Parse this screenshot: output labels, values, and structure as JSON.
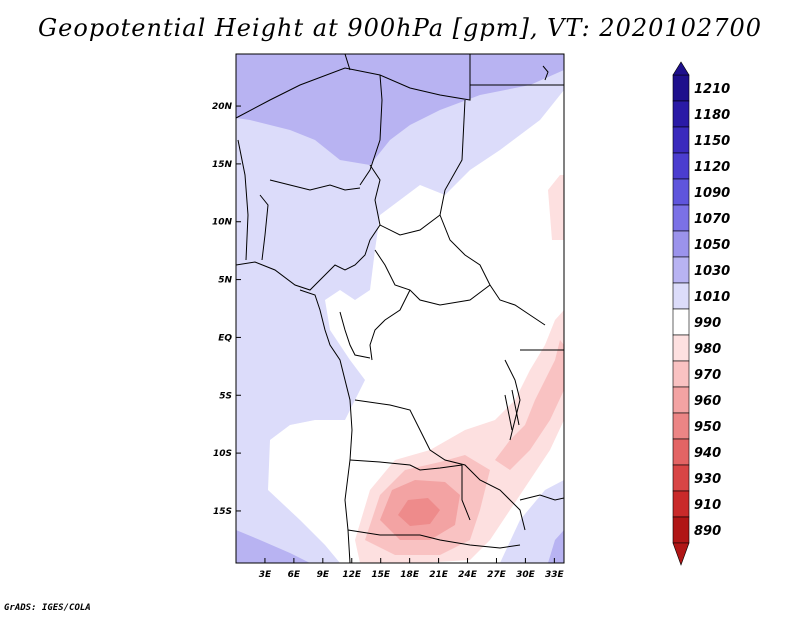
{
  "title": "Geopotential Height at 900hPa [gpm], VT: 2020102700",
  "credit": "GrADS: IGES/COLA",
  "map": {
    "region": "Central and Southern-Central Africa",
    "lon_range": [
      0,
      34
    ],
    "lat_range": [
      -19.5,
      24.5
    ],
    "lat_ticks": [
      {
        "value": 20,
        "label": "20N"
      },
      {
        "value": 15,
        "label": "15N"
      },
      {
        "value": 10,
        "label": "10N"
      },
      {
        "value": 5,
        "label": "5N"
      },
      {
        "value": 0,
        "label": "EQ"
      },
      {
        "value": -5,
        "label": "5S"
      },
      {
        "value": -10,
        "label": "10S"
      },
      {
        "value": -15,
        "label": "15S"
      }
    ],
    "lon_ticks": [
      {
        "value": 3,
        "label": "3E"
      },
      {
        "value": 6,
        "label": "6E"
      },
      {
        "value": 9,
        "label": "9E"
      },
      {
        "value": 12,
        "label": "12E"
      },
      {
        "value": 15,
        "label": "15E"
      },
      {
        "value": 18,
        "label": "18E"
      },
      {
        "value": 21,
        "label": "21E"
      },
      {
        "value": 24,
        "label": "24E"
      },
      {
        "value": 27,
        "label": "27E"
      },
      {
        "value": 30,
        "label": "30E"
      },
      {
        "value": 33,
        "label": "33E"
      }
    ]
  },
  "colorbar": {
    "labels": [
      "1210",
      "1180",
      "1150",
      "1120",
      "1090",
      "1070",
      "1050",
      "1030",
      "1010",
      "990",
      "980",
      "970",
      "960",
      "950",
      "940",
      "930",
      "910",
      "890"
    ],
    "colors": [
      "#1e0f8c",
      "#2a1aa6",
      "#3a2abd",
      "#4b3dcf",
      "#5f55dc",
      "#7b71e6",
      "#9b93ec",
      "#b8b3f2",
      "#dcdcfa",
      "#ffffff",
      "#fde0e0",
      "#f9c2c2",
      "#f3a3a3",
      "#ec8585",
      "#e36464",
      "#d84545",
      "#c92a2a",
      "#b01616"
    ]
  }
}
